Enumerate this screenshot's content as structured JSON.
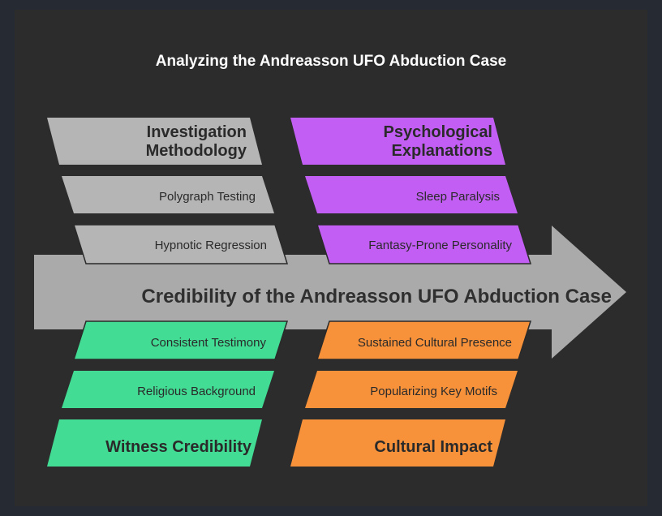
{
  "title": "Analyzing the Andreasson UFO Abduction Case",
  "spine": "Credibility of the Andreasson UFO Abduction Case",
  "colors": {
    "gray": "#b5b5b5",
    "purple": "#c35ef5",
    "green": "#42dc94",
    "orange": "#f7913a",
    "spine": "#aaaaaa"
  },
  "categories": {
    "investigation": {
      "label": "Investigation Methodology",
      "items": [
        "Polygraph Testing",
        "Hypnotic Regression"
      ]
    },
    "psychological": {
      "label": "Psychological Explanations",
      "items": [
        "Sleep Paralysis",
        "Fantasy-Prone Personality"
      ]
    },
    "witness": {
      "label": "Witness Credibility",
      "items": [
        "Consistent Testimony",
        "Religious Background"
      ]
    },
    "cultural": {
      "label": "Cultural Impact",
      "items": [
        "Sustained Cultural Presence",
        "Popularizing Key Motifs"
      ]
    }
  }
}
